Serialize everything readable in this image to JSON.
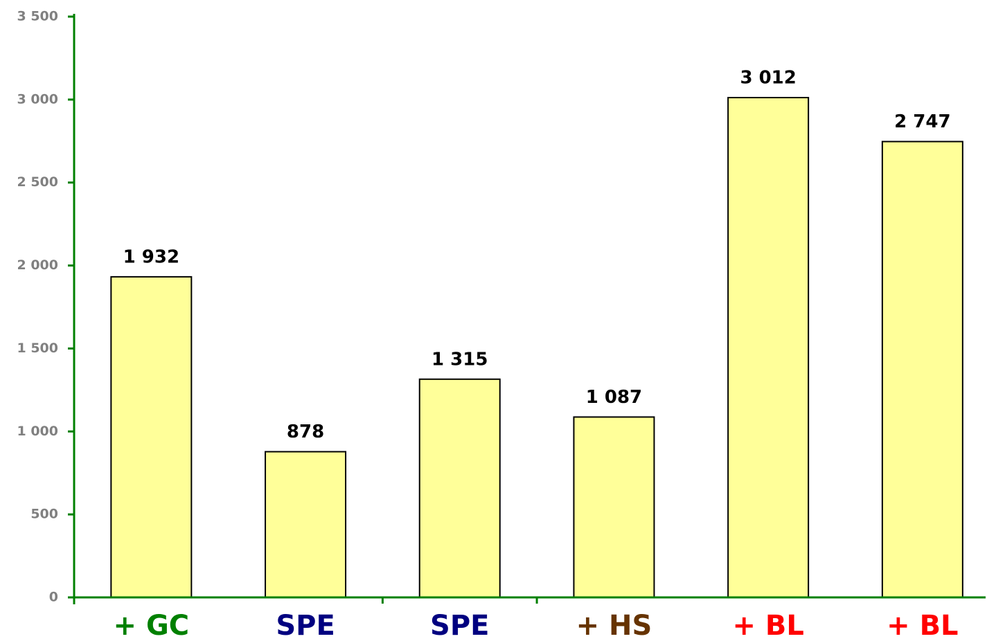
{
  "chart_data": {
    "type": "bar",
    "categories": [
      "+ GC",
      "SPE",
      "SPE",
      "+ HS",
      "+ BL",
      "+ BL"
    ],
    "category_colors": [
      "#008000",
      "#000080",
      "#000080",
      "#663300",
      "#ff0000",
      "#ff0000"
    ],
    "values": [
      1932,
      878,
      1315,
      1087,
      3012,
      2747
    ],
    "value_labels": [
      "1 932",
      "878",
      "1 315",
      "1 087",
      "3 012",
      "2 747"
    ],
    "color": "#ffff99",
    "ylim": [
      0,
      3500
    ],
    "yticks": [
      0,
      500,
      {
        "value": 1000,
        "label": "1 000"
      },
      {
        "value": 1500,
        "label": "1 500"
      },
      {
        "value": 2000,
        "label": "2 000"
      },
      {
        "value": 2500,
        "label": "2 500"
      },
      {
        "value": 3000,
        "label": "3 000"
      },
      {
        "value": 3500,
        "label": "3 500"
      }
    ],
    "grid": false
  }
}
